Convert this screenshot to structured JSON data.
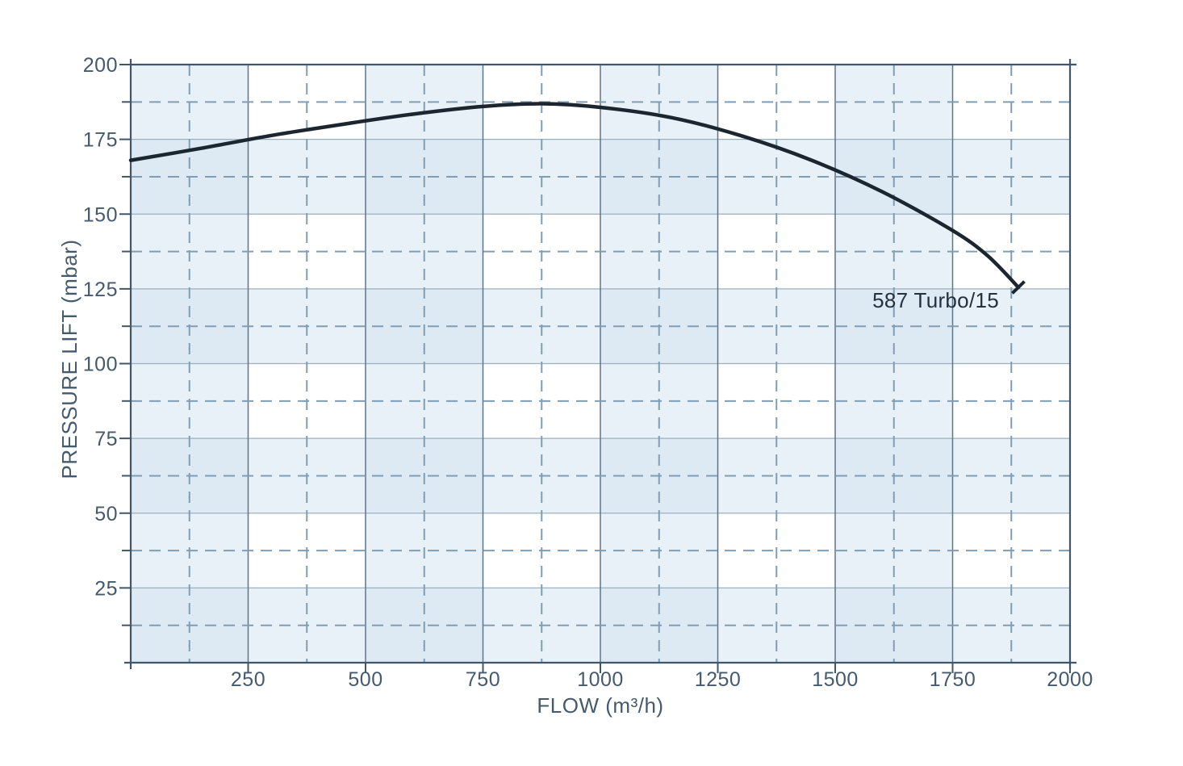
{
  "chart_data": {
    "type": "line",
    "title": "",
    "xlabel": "FLOW (m³/h)",
    "ylabel": "PRESSURE LIFT (mbar)",
    "xlim": [
      0,
      2000
    ],
    "ylim": [
      0,
      200
    ],
    "x_major_ticks": [
      250,
      500,
      750,
      1000,
      1250,
      1500,
      1750,
      2000
    ],
    "x_minor_gridlines": [
      125,
      375,
      625,
      875,
      1125,
      1375,
      1625,
      1875
    ],
    "y_major_ticks": [
      25,
      50,
      75,
      100,
      125,
      150,
      175,
      200
    ],
    "y_minor_gridlines": [
      12.5,
      37.5,
      62.5,
      87.5,
      112.5,
      137.5,
      162.5,
      187.5
    ],
    "shaded_columns_x": [
      [
        0,
        250
      ],
      [
        500,
        750
      ],
      [
        1000,
        1250
      ],
      [
        1500,
        1750
      ]
    ],
    "shaded_rows_y": [
      [
        0,
        25
      ],
      [
        50,
        75
      ],
      [
        100,
        125
      ],
      [
        150,
        175
      ]
    ],
    "grid": {
      "solid_major": true,
      "dashed_minor": true,
      "legend": "none"
    },
    "series": [
      {
        "name": "587 Turbo/15",
        "end_marker": "perpendicular-tick",
        "points": [
          [
            0,
            168
          ],
          [
            150,
            172
          ],
          [
            300,
            176.3
          ],
          [
            450,
            180
          ],
          [
            600,
            183.4
          ],
          [
            750,
            186
          ],
          [
            875,
            186.9
          ],
          [
            1000,
            185.7
          ],
          [
            1150,
            182.3
          ],
          [
            1300,
            176.2
          ],
          [
            1450,
            168
          ],
          [
            1600,
            157.5
          ],
          [
            1750,
            144.5
          ],
          [
            1825,
            136
          ],
          [
            1890,
            125.5
          ]
        ]
      }
    ],
    "colors": {
      "background": "#ffffff",
      "band_blue": "#d2e4f0",
      "dashed_line": "#7f9eb6",
      "solid_h_line": "#9cafbd",
      "solid_v_line": "#5f7488",
      "axis": "#42566a",
      "tick_text": "#455a6d",
      "curve": "#1c2631",
      "series_label_text": "#24313e"
    }
  }
}
